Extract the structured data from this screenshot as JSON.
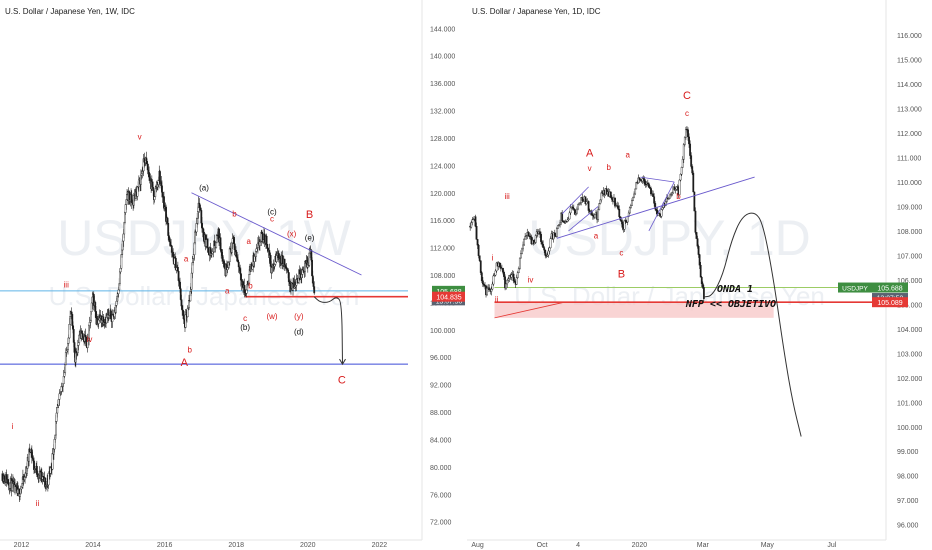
{
  "colors": {
    "candle": "#1b1b1b",
    "wave_label": "#d81b1b",
    "wave_label_black": "#111111",
    "trendline": "#6a5acd",
    "support_blue": "#3b4ad6",
    "support_cyan": "#5fb4e6",
    "support_red": "#e53935",
    "green_line": "#9ccc65",
    "target_zone": "#f7c6c6",
    "watermark": "#eceff3",
    "axis_text": "#555555",
    "badge_green": "#3e8e41",
    "badge_gray": "#5a6270",
    "badge_red": "#e53935"
  },
  "chart_data": [
    {
      "type": "candlestick",
      "title": "U.S. Dollar / Japanese Yen, 1W, IDC",
      "watermark_symbol": "USDJPY, 1W",
      "watermark_name": "U.S. Dollar / Japanese Yen",
      "x_tick_labels": [
        "2012",
        "2014",
        "2016",
        "2018",
        "2020",
        "2022"
      ],
      "x_ticks": [
        2012,
        2014,
        2016,
        2018,
        2020,
        2022
      ],
      "xlim": [
        2011.4,
        2022.8
      ],
      "y_tick_labels": [
        "72.000",
        "76.000",
        "80.000",
        "84.000",
        "88.000",
        "92.000",
        "96.000",
        "100.000",
        "104.000",
        "108.000",
        "112.000",
        "116.000",
        "120.000",
        "124.000",
        "128.000",
        "132.000",
        "136.000",
        "140.000",
        "144.000"
      ],
      "y_ticks": [
        72,
        76,
        80,
        84,
        88,
        92,
        96,
        100,
        104,
        108,
        112,
        116,
        120,
        124,
        128,
        132,
        136,
        140,
        144
      ],
      "ylim": [
        70.5,
        145.5
      ],
      "price_path": [
        [
          2011.45,
          79.0
        ],
        [
          2011.7,
          77.5
        ],
        [
          2011.9,
          76.0
        ],
        [
          2012.1,
          78.5
        ],
        [
          2012.25,
          83.0
        ],
        [
          2012.35,
          80.0
        ],
        [
          2012.55,
          78.5
        ],
        [
          2012.7,
          77.3
        ],
        [
          2012.85,
          80.5
        ],
        [
          2013.0,
          88.0
        ],
        [
          2013.2,
          94.0
        ],
        [
          2013.38,
          102.5
        ],
        [
          2013.5,
          96.0
        ],
        [
          2013.65,
          99.5
        ],
        [
          2013.85,
          98.0
        ],
        [
          2014.0,
          105.0
        ],
        [
          2014.1,
          101.5
        ],
        [
          2014.4,
          101.8
        ],
        [
          2014.6,
          102.2
        ],
        [
          2014.75,
          108.0
        ],
        [
          2014.95,
          120.0
        ],
        [
          2015.1,
          118.5
        ],
        [
          2015.3,
          121.5
        ],
        [
          2015.45,
          125.0
        ],
        [
          2015.7,
          119.5
        ],
        [
          2015.85,
          122.5
        ],
        [
          2016.0,
          118.0
        ],
        [
          2016.2,
          111.0
        ],
        [
          2016.35,
          109.0
        ],
        [
          2016.55,
          100.5
        ],
        [
          2016.7,
          104.0
        ],
        [
          2016.85,
          114.0
        ],
        [
          2016.95,
          118.5
        ],
        [
          2017.1,
          113.5
        ],
        [
          2017.3,
          111.0
        ],
        [
          2017.5,
          114.0
        ],
        [
          2017.7,
          108.5
        ],
        [
          2017.9,
          113.0
        ],
        [
          2018.05,
          110.0
        ],
        [
          2018.15,
          107.5
        ],
        [
          2018.25,
          105.0
        ],
        [
          2018.4,
          109.0
        ],
        [
          2018.55,
          111.0
        ],
        [
          2018.7,
          113.5
        ],
        [
          2018.85,
          113.0
        ],
        [
          2019.0,
          108.5
        ],
        [
          2019.15,
          111.0
        ],
        [
          2019.35,
          109.5
        ],
        [
          2019.55,
          106.0
        ],
        [
          2019.7,
          107.5
        ],
        [
          2019.85,
          108.8
        ],
        [
          2020.0,
          109.5
        ],
        [
          2020.08,
          112.0
        ],
        [
          2020.12,
          108.0
        ],
        [
          2020.18,
          104.8
        ]
      ],
      "wave_labels": [
        {
          "text": "i",
          "x": 2011.75,
          "y": 85.5,
          "color": "wave_label"
        },
        {
          "text": "ii",
          "x": 2012.45,
          "y": 74.3,
          "color": "wave_label"
        },
        {
          "text": "iii",
          "x": 2013.25,
          "y": 106.2,
          "color": "wave_label"
        },
        {
          "text": "iv",
          "x": 2013.9,
          "y": 98.2,
          "color": "wave_label"
        },
        {
          "text": "v",
          "x": 2015.3,
          "y": 127.8,
          "color": "wave_label"
        },
        {
          "text": "a",
          "x": 2016.6,
          "y": 110.0,
          "color": "wave_label"
        },
        {
          "text": "b",
          "x": 2016.7,
          "y": 96.7,
          "color": "wave_label"
        },
        {
          "text": "A",
          "x": 2016.55,
          "y": 94.7,
          "color": "wave_label",
          "big": true
        },
        {
          "text": "(a)",
          "x": 2017.1,
          "y": 120.3,
          "color": "wave_label_black"
        },
        {
          "text": "b",
          "x": 2017.95,
          "y": 116.5,
          "color": "wave_label"
        },
        {
          "text": "a",
          "x": 2017.75,
          "y": 105.3,
          "color": "wave_label"
        },
        {
          "text": "b",
          "x": 2018.4,
          "y": 106.0,
          "color": "wave_label"
        },
        {
          "text": "a",
          "x": 2018.35,
          "y": 112.5,
          "color": "wave_label"
        },
        {
          "text": "(b)",
          "x": 2018.25,
          "y": 100.0,
          "color": "wave_label_black"
        },
        {
          "text": "c",
          "x": 2018.25,
          "y": 101.3,
          "color": "wave_label"
        },
        {
          "text": "(c)",
          "x": 2019.0,
          "y": 116.8,
          "color": "wave_label_black"
        },
        {
          "text": "c",
          "x": 2019.0,
          "y": 115.8,
          "color": "wave_label"
        },
        {
          "text": "(x)",
          "x": 2019.55,
          "y": 113.6,
          "color": "wave_label"
        },
        {
          "text": "(w)",
          "x": 2019.0,
          "y": 101.6,
          "color": "wave_label"
        },
        {
          "text": "(y)",
          "x": 2019.75,
          "y": 101.6,
          "color": "wave_label"
        },
        {
          "text": "(d)",
          "x": 2019.75,
          "y": 99.3,
          "color": "wave_label_black"
        },
        {
          "text": "B",
          "x": 2020.05,
          "y": 116.3,
          "color": "wave_label",
          "big": true
        },
        {
          "text": "(e)",
          "x": 2020.05,
          "y": 113.0,
          "color": "wave_label_black"
        },
        {
          "text": "C",
          "x": 2020.95,
          "y": 92.2,
          "color": "wave_label",
          "big": true
        }
      ],
      "trendline": {
        "x1": 2016.75,
        "y1": 120.0,
        "x2": 2021.5,
        "y2": 108.0
      },
      "support_blue": 95.0,
      "support_cyan": 105.688,
      "support_red": 104.835,
      "support_red_from": 2018.25,
      "projection": [
        [
          2020.18,
          104.8
        ],
        [
          2020.35,
          104.0
        ],
        [
          2020.6,
          104.0
        ],
        [
          2020.8,
          104.9
        ],
        [
          2020.95,
          104.0
        ],
        [
          2020.97,
          95.0
        ]
      ],
      "price_badges": [
        {
          "value": 105.688,
          "label": "105.688",
          "fill": "badge_green"
        },
        {
          "value": 104.835,
          "label": "104.835",
          "fill": "badge_red"
        }
      ]
    },
    {
      "type": "candlestick",
      "title": "U.S. Dollar / Japanese Yen, 1D, IDC",
      "watermark_symbol": "USDJPY, 1D",
      "watermark_name": "U.S. Dollar / Japanese Yen",
      "x_tick_labels": [
        "Aug",
        "Oct",
        "4",
        "2020",
        "Mar",
        "May",
        "Jul"
      ],
      "x_ticks": [
        0,
        61,
        95,
        153,
        213,
        274,
        335
      ],
      "xlim": [
        -10,
        373
      ],
      "y_tick_labels": [
        "96.000",
        "97.000",
        "98.000",
        "99.000",
        "100.000",
        "101.000",
        "102.000",
        "103.000",
        "104.000",
        "105.000",
        "106.000",
        "107.000",
        "108.000",
        "109.000",
        "110.000",
        "111.000",
        "112.000",
        "113.000",
        "114.000",
        "115.000",
        "116.000"
      ],
      "y_ticks": [
        96,
        97,
        98,
        99,
        100,
        101,
        102,
        103,
        104,
        105,
        106,
        107,
        108,
        109,
        110,
        111,
        112,
        113,
        114,
        115,
        116
      ],
      "ylim": [
        95.7,
        116.7
      ],
      "price_path": [
        [
          -8,
          108.2
        ],
        [
          -3,
          108.7
        ],
        [
          0,
          107.3
        ],
        [
          4,
          106.0
        ],
        [
          8,
          105.5
        ],
        [
          13,
          105.7
        ],
        [
          18,
          106.7
        ],
        [
          22,
          106.6
        ],
        [
          26,
          105.8
        ],
        [
          32,
          106.3
        ],
        [
          36,
          105.9
        ],
        [
          42,
          107.3
        ],
        [
          47,
          108.0
        ],
        [
          52,
          107.5
        ],
        [
          58,
          108.0
        ],
        [
          62,
          107.2
        ],
        [
          66,
          107.0
        ],
        [
          70,
          107.8
        ],
        [
          74,
          107.8
        ],
        [
          79,
          108.6
        ],
        [
          84,
          108.3
        ],
        [
          89,
          109.0
        ],
        [
          92,
          108.7
        ],
        [
          98,
          109.4
        ],
        [
          103,
          109.2
        ],
        [
          107,
          108.7
        ],
        [
          113,
          108.6
        ],
        [
          117,
          109.5
        ],
        [
          121,
          109.6
        ],
        [
          127,
          109.4
        ],
        [
          133,
          108.9
        ],
        [
          137,
          108.1
        ],
        [
          143,
          108.7
        ],
        [
          147,
          109.5
        ],
        [
          151,
          110.0
        ],
        [
          156,
          110.2
        ],
        [
          161,
          109.8
        ],
        [
          165,
          109.6
        ],
        [
          170,
          108.5
        ],
        [
          175,
          108.9
        ],
        [
          180,
          109.4
        ],
        [
          186,
          109.8
        ],
        [
          190,
          109.6
        ],
        [
          194,
          111.0
        ],
        [
          197,
          112.2
        ],
        [
          200,
          111.6
        ],
        [
          203,
          110.3
        ],
        [
          206,
          108.0
        ],
        [
          209,
          107.0
        ],
        [
          212,
          105.8
        ],
        [
          214,
          105.3
        ]
      ],
      "wave_labels": [
        {
          "text": "A",
          "x": 106,
          "y": 111.05,
          "color": "wave_label",
          "big": true
        },
        {
          "text": "v",
          "x": 106,
          "y": 110.45,
          "color": "wave_label"
        },
        {
          "text": "b",
          "x": 124,
          "y": 110.5,
          "color": "wave_label"
        },
        {
          "text": "a",
          "x": 142,
          "y": 111.0,
          "color": "wave_label"
        },
        {
          "text": "iii",
          "x": 28,
          "y": 109.3,
          "color": "wave_label"
        },
        {
          "text": "a",
          "x": 112,
          "y": 107.7,
          "color": "wave_label"
        },
        {
          "text": "i",
          "x": 14,
          "y": 106.8,
          "color": "wave_label"
        },
        {
          "text": "iv",
          "x": 50,
          "y": 105.9,
          "color": "wave_label"
        },
        {
          "text": "c",
          "x": 136,
          "y": 107.0,
          "color": "wave_label"
        },
        {
          "text": "B",
          "x": 136,
          "y": 106.1,
          "color": "wave_label",
          "big": true
        },
        {
          "text": "ii",
          "x": 18,
          "y": 105.1,
          "color": "wave_label"
        },
        {
          "text": "C",
          "x": 198,
          "y": 113.4,
          "color": "wave_label",
          "big": true
        },
        {
          "text": "c",
          "x": 198,
          "y": 112.7,
          "color": "wave_label"
        },
        {
          "text": "b",
          "x": 190,
          "y": 109.3,
          "color": "wave_label"
        }
      ],
      "channel_lines": [
        {
          "x1": 80,
          "y1": 108.7,
          "x2": 105,
          "y2": 109.8
        },
        {
          "x1": 86,
          "y1": 108.0,
          "x2": 114,
          "y2": 109.0
        },
        {
          "x1": 154,
          "y1": 110.2,
          "x2": 186,
          "y2": 110.0
        },
        {
          "x1": 162,
          "y1": 108.0,
          "x2": 186,
          "y2": 110.0
        }
      ],
      "trendline": {
        "x1": 75,
        "y1": 107.7,
        "x2": 262,
        "y2": 110.2
      },
      "support_green": 105.688,
      "support_red": 105.089,
      "target_zone": {
        "x1": 16,
        "x2": 280,
        "y_top": 105.089,
        "y_bottom": 104.45
      },
      "target_zone_diagonal": {
        "x1": 16,
        "y1": 104.45,
        "x2": 82,
        "y2": 105.089
      },
      "projection": [
        [
          214,
          105.3
        ],
        [
          222,
          105.35
        ],
        [
          232,
          106.2
        ],
        [
          240,
          107.6
        ],
        [
          250,
          108.6
        ],
        [
          262,
          108.8
        ],
        [
          270,
          108.3
        ],
        [
          280,
          106.0
        ],
        [
          290,
          103.0
        ],
        [
          298,
          101.0
        ],
        [
          306,
          99.6
        ]
      ],
      "annotations": [
        "ONDA 1",
        "NFP << OBJETIVO"
      ],
      "price_badges": [
        {
          "value": 105.688,
          "label": "105.688",
          "fill": "badge_green",
          "prefix": "USDJPY"
        },
        {
          "value": 105.089,
          "label": "105.089",
          "fill": "badge_red"
        }
      ],
      "countdown_label": "13:07:50"
    }
  ]
}
